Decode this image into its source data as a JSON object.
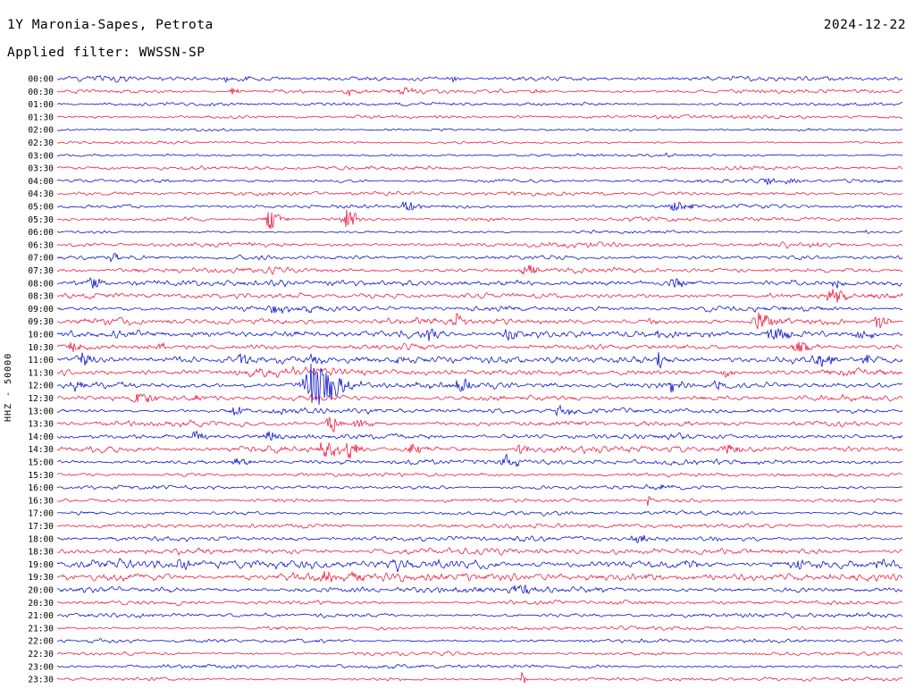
{
  "header": {
    "station": "1Y Maronia-Sapes, Petrota",
    "date": "2024-12-22",
    "filter": "Applied filter: WWSSN-SP"
  },
  "axis": {
    "left_label": "HHZ - 50000"
  },
  "chart_data": {
    "type": "line",
    "subtype": "helicorder-seismogram-dayplot",
    "title": "1Y Maronia-Sapes, Petrota",
    "date": "2024-12-22",
    "filter": "WWSSN-SP",
    "channel_scale_label": "HHZ - 50000",
    "row_interval_minutes": 30,
    "x_range_minutes": [
      0,
      30
    ],
    "legend_position": "none",
    "grid": false,
    "colors": {
      "even_rows": "#0009c8",
      "odd_rows": "#ee1137"
    },
    "event_format": "[x_fraction_of_row_0_to_1, peak_amplitude_px, envelope_width_fraction]",
    "rows": [
      {
        "time": "00:00",
        "noise": 1.5,
        "events": [
          [
            0.2,
            3,
            0.008
          ],
          [
            0.22,
            2.5,
            0.008
          ],
          [
            0.466,
            3,
            0.008
          ]
        ]
      },
      {
        "time": "00:30",
        "noise": 1.2,
        "events": [
          [
            0.207,
            4,
            0.006
          ],
          [
            0.345,
            3.5,
            0.008
          ],
          [
            0.408,
            4,
            0.009
          ],
          [
            0.567,
            2.5,
            0.008
          ]
        ]
      },
      {
        "time": "01:00",
        "noise": 1.0,
        "events": []
      },
      {
        "time": "01:30",
        "noise": 1.0,
        "events": []
      },
      {
        "time": "02:00",
        "noise": 0.9,
        "events": []
      },
      {
        "time": "02:30",
        "noise": 0.9,
        "events": []
      },
      {
        "time": "03:00",
        "noise": 0.9,
        "events": [
          [
            0.72,
            2.5,
            0.004
          ]
        ]
      },
      {
        "time": "03:30",
        "noise": 1.1,
        "events": []
      },
      {
        "time": "04:00",
        "noise": 1.1,
        "events": [
          [
            0.838,
            5,
            0.006
          ],
          [
            0.865,
            3,
            0.008
          ]
        ]
      },
      {
        "time": "04:30",
        "noise": 1.1,
        "events": [
          [
            0.25,
            3,
            0.005
          ]
        ]
      },
      {
        "time": "05:00",
        "noise": 1.2,
        "events": [
          [
            0.413,
            6,
            0.012
          ],
          [
            0.73,
            5,
            0.018
          ]
        ]
      },
      {
        "time": "05:30",
        "noise": 1.2,
        "events": [
          [
            0.25,
            11,
            0.01
          ],
          [
            0.34,
            11,
            0.01
          ]
        ]
      },
      {
        "time": "06:00",
        "noise": 0.9,
        "events": [
          [
            0.957,
            5,
            0.002
          ]
        ]
      },
      {
        "time": "06:30",
        "noise": 1.6,
        "events": []
      },
      {
        "time": "07:00",
        "noise": 1.3,
        "events": [
          [
            0.064,
            3.5,
            0.008
          ]
        ]
      },
      {
        "time": "07:30",
        "noise": 1.6,
        "events": [
          [
            0.553,
            6,
            0.012
          ]
        ]
      },
      {
        "time": "08:00",
        "noise": 1.6,
        "events": [
          [
            0.042,
            5,
            0.012
          ],
          [
            0.728,
            7,
            0.01
          ],
          [
            0.92,
            4,
            0.008
          ]
        ]
      },
      {
        "time": "08:30",
        "noise": 1.6,
        "events": [
          [
            0.913,
            8,
            0.012
          ]
        ]
      },
      {
        "time": "09:00",
        "noise": 1.6,
        "events": [
          [
            0.257,
            6,
            0.01
          ],
          [
            0.295,
            4,
            0.01
          ]
        ]
      },
      {
        "time": "09:30",
        "noise": 1.9,
        "events": [
          [
            0.47,
            7,
            0.01
          ],
          [
            0.7,
            3.5,
            0.01
          ],
          [
            0.83,
            9,
            0.016
          ],
          [
            0.97,
            7,
            0.01
          ]
        ]
      },
      {
        "time": "10:00",
        "noise": 2.1,
        "events": [
          [
            0.44,
            7,
            0.009
          ],
          [
            0.533,
            6,
            0.01
          ],
          [
            0.71,
            4,
            0.008
          ],
          [
            0.845,
            8,
            0.016
          ],
          [
            0.947,
            6,
            0.012
          ]
        ]
      },
      {
        "time": "10:30",
        "noise": 1.9,
        "events": [
          [
            0.017,
            5,
            0.01
          ],
          [
            0.12,
            4,
            0.008
          ],
          [
            0.875,
            8,
            0.013
          ]
        ]
      },
      {
        "time": "11:00",
        "noise": 1.9,
        "events": [
          [
            0.025,
            7,
            0.01
          ],
          [
            0.218,
            5,
            0.009
          ],
          [
            0.3,
            4,
            0.009
          ],
          [
            0.4,
            5,
            0.009
          ],
          [
            0.711,
            13,
            0.003
          ],
          [
            0.9,
            7,
            0.013
          ],
          [
            0.955,
            5,
            0.009
          ]
        ]
      },
      {
        "time": "11:30",
        "noise": 2.6,
        "events": [
          [
            0.79,
            4,
            0.008
          ]
        ]
      },
      {
        "time": "12:00",
        "noise": 2.1,
        "events": [
          [
            0.02,
            5,
            0.01
          ],
          [
            0.302,
            26,
            0.024
          ],
          [
            0.475,
            7,
            0.01
          ],
          [
            0.725,
            6,
            0.007
          ],
          [
            0.78,
            5,
            0.007
          ]
        ]
      },
      {
        "time": "12:30",
        "noise": 1.6,
        "events": [
          [
            0.096,
            6,
            0.013
          ],
          [
            0.165,
            4,
            0.009
          ]
        ]
      },
      {
        "time": "13:00",
        "noise": 1.6,
        "events": [
          [
            0.208,
            5,
            0.01
          ],
          [
            0.26,
            4,
            0.013
          ],
          [
            0.593,
            6,
            0.011
          ]
        ]
      },
      {
        "time": "13:30",
        "noise": 1.6,
        "events": [
          [
            0.322,
            9,
            0.009
          ],
          [
            0.355,
            5,
            0.013
          ]
        ]
      },
      {
        "time": "14:00",
        "noise": 1.6,
        "events": [
          [
            0.163,
            5,
            0.009
          ],
          [
            0.247,
            5,
            0.011
          ]
        ]
      },
      {
        "time": "14:30",
        "noise": 1.9,
        "events": [
          [
            0.315,
            9,
            0.013
          ],
          [
            0.345,
            10,
            0.009
          ],
          [
            0.42,
            6,
            0.011
          ],
          [
            0.545,
            5,
            0.011
          ],
          [
            0.79,
            6,
            0.013
          ]
        ]
      },
      {
        "time": "15:00",
        "noise": 1.6,
        "events": [
          [
            0.212,
            4,
            0.011
          ],
          [
            0.53,
            6,
            0.011
          ]
        ]
      },
      {
        "time": "15:30",
        "noise": 1.2,
        "events": []
      },
      {
        "time": "16:00",
        "noise": 1.1,
        "events": [
          [
            0.71,
            3,
            0.013
          ]
        ]
      },
      {
        "time": "16:30",
        "noise": 1.1,
        "events": [
          [
            0.698,
            9,
            0.0022
          ]
        ]
      },
      {
        "time": "17:00",
        "noise": 1.1,
        "events": []
      },
      {
        "time": "17:30",
        "noise": 1.3,
        "events": []
      },
      {
        "time": "18:00",
        "noise": 1.3,
        "events": [
          [
            0.682,
            5,
            0.011
          ]
        ]
      },
      {
        "time": "18:30",
        "noise": 1.6,
        "events": []
      },
      {
        "time": "19:00",
        "noise": 2.3,
        "events": [
          [
            0.145,
            4,
            0.009
          ],
          [
            0.4,
            4,
            0.009
          ],
          [
            0.745,
            4,
            0.011
          ],
          [
            0.875,
            4,
            0.009
          ],
          [
            0.968,
            4,
            0.007
          ]
        ]
      },
      {
        "time": "19:30",
        "noise": 2.3,
        "events": [
          [
            0.315,
            6,
            0.011
          ],
          [
            0.35,
            5,
            0.009
          ]
        ]
      },
      {
        "time": "20:00",
        "noise": 2.1,
        "events": [
          [
            0.545,
            6,
            0.011
          ]
        ]
      },
      {
        "time": "20:30",
        "noise": 1.3,
        "events": []
      },
      {
        "time": "21:00",
        "noise": 1.3,
        "events": []
      },
      {
        "time": "21:30",
        "noise": 1.1,
        "events": []
      },
      {
        "time": "22:00",
        "noise": 1.3,
        "events": []
      },
      {
        "time": "22:30",
        "noise": 1.1,
        "events": []
      },
      {
        "time": "23:00",
        "noise": 1.1,
        "events": []
      },
      {
        "time": "23:30",
        "noise": 1.1,
        "events": [
          [
            0.55,
            10,
            0.003
          ]
        ]
      }
    ]
  }
}
